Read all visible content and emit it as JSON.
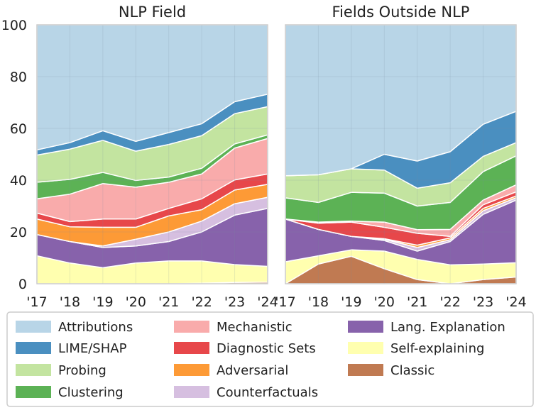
{
  "chart_data": [
    {
      "type": "area",
      "stacked": true,
      "title": "NLP Field",
      "categories": [
        "'17",
        "'18",
        "'19",
        "'20",
        "'21",
        "'22",
        "'23",
        "'24"
      ],
      "ylim": [
        0,
        100
      ],
      "yticks": [
        "0",
        "20",
        "40",
        "60",
        "80",
        "100"
      ],
      "grid": true,
      "series": [
        {
          "name": "Classic",
          "values": [
            0,
            0,
            0,
            0,
            0,
            0.2,
            0.5,
            0.6
          ]
        },
        {
          "name": "Self-explaining",
          "values": [
            10.8,
            8,
            6.2,
            8,
            8.8,
            8.6,
            6.9,
            6.1
          ]
        },
        {
          "name": "Lang. Explanation",
          "values": [
            8.2,
            8.3,
            7.8,
            6.6,
            7.5,
            11.2,
            19.1,
            22.4
          ]
        },
        {
          "name": "Counterfactuals",
          "values": [
            0,
            0,
            0.6,
            2.6,
            3.7,
            4.2,
            4.4,
            4.3
          ]
        },
        {
          "name": "Adversarial",
          "values": [
            6,
            5.7,
            7.2,
            4.6,
            6.2,
            4.4,
            5.3,
            5
          ]
        },
        {
          "name": "Diagnostic Sets",
          "values": [
            2.3,
            2,
            3.2,
            3.2,
            2.9,
            4.2,
            3.9,
            4
          ]
        },
        {
          "name": "Mechanistic",
          "values": [
            5.5,
            10.6,
            13.7,
            12.3,
            10.1,
            9.6,
            12.3,
            13.7
          ]
        },
        {
          "name": "Clustering",
          "values": [
            6.4,
            5.7,
            4.3,
            2.6,
            2,
            2.2,
            1.6,
            1.4
          ]
        },
        {
          "name": "Probing",
          "values": [
            10.5,
            11.7,
            12.4,
            11.3,
            12.6,
            12.6,
            11.7,
            10.9
          ]
        },
        {
          "name": "LIME/SHAP",
          "values": [
            2,
            2.5,
            3.7,
            3.8,
            4.6,
            4.6,
            4.6,
            4.8
          ]
        },
        {
          "name": "Attributions",
          "values": [
            48.3,
            45.5,
            40.9,
            45,
            41.6,
            38.2,
            29.7,
            26.8
          ]
        }
      ]
    },
    {
      "type": "area",
      "stacked": true,
      "title": "Fields Outside NLP",
      "categories": [
        "'17",
        "'18",
        "'19",
        "'20",
        "'21",
        "'22",
        "'23",
        "'24"
      ],
      "ylim": [
        0,
        100
      ],
      "grid": true,
      "series": [
        {
          "name": "Classic",
          "values": [
            0,
            7.6,
            10.6,
            5.8,
            1.6,
            0,
            1.6,
            2.6
          ]
        },
        {
          "name": "Self-explaining",
          "values": [
            8.5,
            3.2,
            2.5,
            6.8,
            7.8,
            7.3,
            6,
            5.5
          ]
        },
        {
          "name": "Lang. Explanation",
          "values": [
            16.5,
            10.2,
            5.2,
            4.1,
            3.2,
            9,
            19.2,
            24.2
          ]
        },
        {
          "name": "Counterfactuals",
          "values": [
            0,
            0,
            0,
            0.5,
            1.4,
            0.7,
            1.4,
            0.9
          ]
        },
        {
          "name": "Adversarial",
          "values": [
            0,
            0,
            0,
            0.2,
            0.9,
            0.7,
            0.9,
            0.7
          ]
        },
        {
          "name": "Diagnostic Sets",
          "values": [
            0,
            2.4,
            5.5,
            4.4,
            4.6,
            0.6,
            1.4,
            1.6
          ]
        },
        {
          "name": "Mechanistic",
          "values": [
            0,
            0.4,
            0.4,
            2,
            1.4,
            2.7,
            1.8,
            2.7
          ]
        },
        {
          "name": "Clustering",
          "values": [
            8.2,
            7.6,
            11.1,
            11.2,
            9.1,
            10.4,
            11,
            11.2
          ]
        },
        {
          "name": "Probing",
          "values": [
            8.5,
            10.7,
            9.1,
            8.9,
            6.9,
            7.6,
            5.9,
            5.1
          ]
        },
        {
          "name": "LIME/SHAP",
          "values": [
            0,
            0,
            0,
            6.1,
            10.5,
            12,
            12.4,
            12.1
          ]
        },
        {
          "name": "Attributions",
          "values": [
            58.3,
            57.9,
            55.6,
            50,
            52.6,
            49,
            38.4,
            33.4
          ]
        }
      ]
    }
  ],
  "colors": {
    "Attributions": "#b8d5e7",
    "LIME/SHAP": "#4a8fc0",
    "Probing": "#c3e4a0",
    "Clustering": "#5cb255",
    "Mechanistic": "#f9abab",
    "Diagnostic Sets": "#e7474a",
    "Adversarial": "#fd9a36",
    "Counterfactuals": "#d6bfe0",
    "Lang. Explanation": "#8762ab",
    "Self-explaining": "#ffffaf",
    "Classic": "#c07a52"
  },
  "legend": {
    "placement": "bottom",
    "items": [
      "Attributions",
      "Mechanistic",
      "Lang. Explanation",
      "LIME/SHAP",
      "Diagnostic Sets",
      "Self-explaining",
      "Probing",
      "Adversarial",
      "Classic",
      "Clustering",
      "Counterfactuals"
    ]
  }
}
